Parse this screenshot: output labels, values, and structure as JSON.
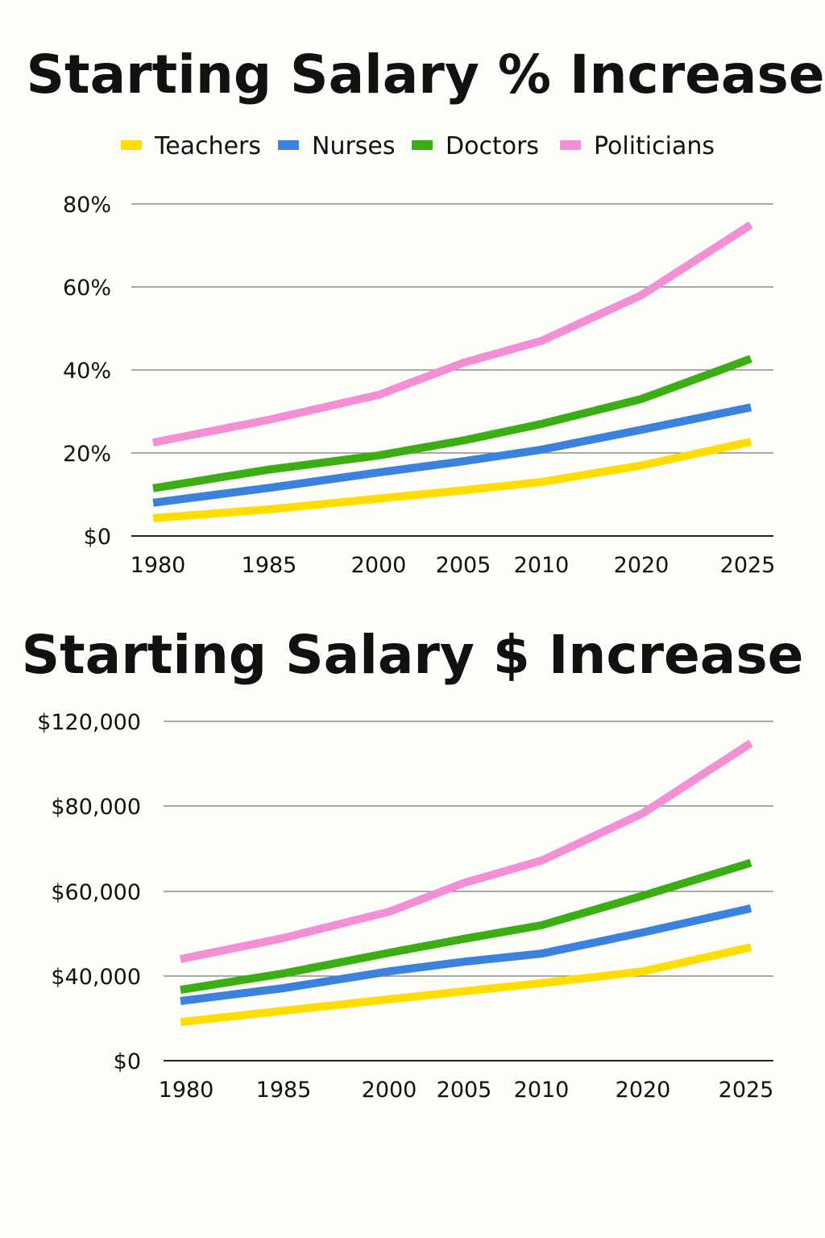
{
  "chart_data": [
    {
      "type": "line",
      "title": "Starting Salary % Increase",
      "categories": [
        "1980",
        "1985",
        "2000",
        "2005",
        "2010",
        "2020",
        "2025"
      ],
      "y_ticks": [
        0,
        20,
        40,
        60,
        80
      ],
      "y_tick_labels": [
        "$0",
        "20%",
        "40%",
        "60%",
        "80%"
      ],
      "ylim": [
        0,
        80
      ],
      "grid": true,
      "legend": "top",
      "series": [
        {
          "name": "Teachers",
          "color": "#FFDD00",
          "values": [
            4.3,
            6.4,
            9,
            11,
            13,
            17,
            22.7
          ]
        },
        {
          "name": "Nurses",
          "color": "#3B82DE",
          "values": [
            8,
            11.6,
            15.3,
            18,
            20.8,
            25.6,
            31
          ]
        },
        {
          "name": "Doctors",
          "color": "#3AAE12",
          "values": [
            11.5,
            16,
            19.4,
            23,
            27,
            33,
            42.7
          ]
        },
        {
          "name": "Politicians",
          "color": "#F28FD5",
          "values": [
            22.5,
            28,
            34,
            41.7,
            47,
            58,
            75
          ]
        }
      ]
    },
    {
      "type": "line",
      "title": "Starting Salary $ Increase",
      "categories": [
        "1980",
        "1985",
        "2000",
        "2005",
        "2010",
        "2020",
        "2025"
      ],
      "y_ticks": [
        0,
        40000,
        60000,
        80000,
        120000
      ],
      "y_tick_labels": [
        "$0",
        "$40,000",
        "$60,000",
        "$80,000",
        "$120,000"
      ],
      "ylim": [
        0,
        120000
      ],
      "grid": true,
      "series": [
        {
          "name": "Teachers",
          "color": "#FFDD00",
          "values": [
            18300,
            23600,
            29000,
            32800,
            36600,
            41100,
            46800
          ]
        },
        {
          "name": "Nurses",
          "color": "#3B82DE",
          "values": [
            28200,
            34300,
            41100,
            43400,
            45300,
            50300,
            56000
          ]
        },
        {
          "name": "Doctors",
          "color": "#3AAE12",
          "values": [
            33500,
            40600,
            45500,
            48800,
            52000,
            59000,
            66700
          ]
        },
        {
          "name": "Politicians",
          "color": "#F28FD5",
          "values": [
            44000,
            49000,
            55200,
            62000,
            67200,
            78300,
            109700
          ]
        }
      ]
    }
  ]
}
